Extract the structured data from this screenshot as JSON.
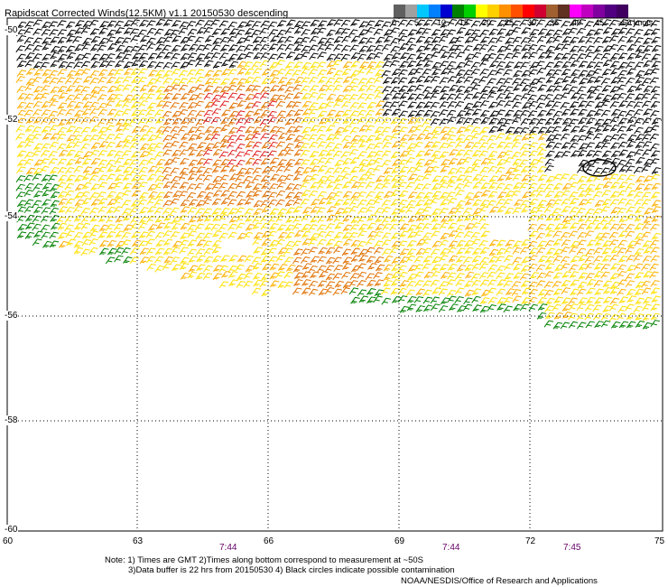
{
  "title": "Rapidscat Corrected Winds(12.5KM) v1.1 20150530 descending",
  "colorbar": {
    "labels": [
      "0",
      "5",
      "10",
      "15",
      "20",
      "25",
      "30",
      "35",
      "40",
      "45",
      ">50 knots"
    ],
    "colors": [
      "#606060",
      "#a0a0a0",
      "#00c8ff",
      "#0080ff",
      "#0000d0",
      "#008000",
      "#00d000",
      "#ffff00",
      "#ffd000",
      "#ff9000",
      "#ff5000",
      "#ff0000",
      "#d00030",
      "#a06030",
      "#603020",
      "#ff00ff",
      "#c000c0",
      "#8000a0",
      "#500080",
      "#400060"
    ]
  },
  "map": {
    "lon_labels": [
      "60",
      "63",
      "66",
      "69",
      "72",
      "75"
    ],
    "lat_labels": [
      "-50",
      "-52",
      "-54",
      "-56",
      "-58",
      "-60"
    ],
    "times": [
      "7:44",
      "7:44",
      "7:45"
    ]
  },
  "notes": {
    "line1": "Note: 1) Times are GMT 2)Times along bottom correspond to measurement at ~50S",
    "line2": "3)Data buffer is 22 hrs from 20150530 4) Black circles indicate possible contamination"
  },
  "credit": "NOAA/NESDIS/Office of Research and Applications",
  "wind_colors": {
    "black": "#000000",
    "green": "#008000",
    "yellow": "#ffe000",
    "gold": "#ffb000",
    "orange": "#e07000",
    "red": "#e02020"
  }
}
